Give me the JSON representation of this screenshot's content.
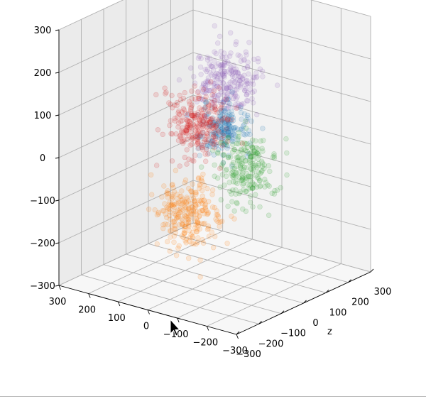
{
  "chart_data": {
    "type": "scatter",
    "projection": "3d",
    "title": "",
    "xlabel": "",
    "ylabel": "",
    "zlabel": "z",
    "xlim": [
      -300,
      300
    ],
    "ylim": [
      -300,
      300
    ],
    "zlim": [
      -300,
      300
    ],
    "grid": true,
    "marker_alpha": 0.15,
    "x_ticks": [
      "300",
      "200",
      "100",
      "0",
      "−100",
      "−200",
      "−300"
    ],
    "z_ticks": [
      "300",
      "200",
      "100",
      "0",
      "−100",
      "−200",
      "−300"
    ],
    "vertical_ticks": [
      "300",
      "200",
      "100",
      "0",
      "−100",
      "−200",
      "−300"
    ],
    "series": [
      {
        "color": "#9467bd",
        "center": [
          -40,
          0,
          170
        ],
        "spread": [
          45,
          45,
          38
        ],
        "count": 260
      },
      {
        "color": "#1f77b4",
        "center": [
          -20,
          20,
          50
        ],
        "spread": [
          35,
          35,
          28
        ],
        "count": 200
      },
      {
        "color": "#2ca02c",
        "center": [
          -140,
          -40,
          -10
        ],
        "spread": [
          40,
          45,
          40
        ],
        "count": 220
      },
      {
        "color": "#d62728",
        "center": [
          160,
          130,
          0
        ],
        "spread": [
          40,
          40,
          35
        ],
        "count": 260
      },
      {
        "color": "#ff7f0e",
        "center": [
          40,
          -70,
          -140
        ],
        "spread": [
          40,
          40,
          40
        ],
        "count": 260
      }
    ]
  }
}
